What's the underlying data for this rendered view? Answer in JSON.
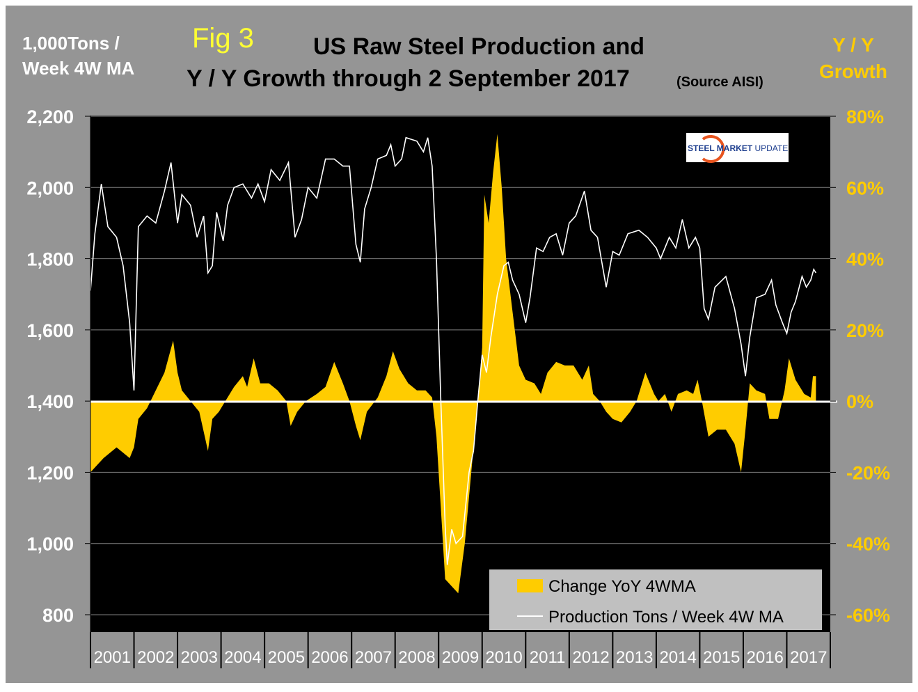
{
  "header": {
    "fig_label": "Fig 3",
    "title_line1": "US Raw Steel Production and",
    "title_line2": "Y / Y Growth through 2 September 2017",
    "source": "(Source AISI)",
    "left_axis_title_line1": "1,000Tons /",
    "left_axis_title_line2": "Week 4W MA",
    "right_axis_title_line1": "Y / Y",
    "right_axis_title_line2": "Growth"
  },
  "logo": {
    "text_bold": "STEEL MARKET",
    "text_light": "UPDATE"
  },
  "colors": {
    "background": "#959595",
    "plot": "#000000",
    "area": "#FFCC00",
    "line": "#FFFFFF",
    "right_axis": "#FFCC00",
    "grid": "#7f7f7f",
    "legend_bg": "#c0c0c0"
  },
  "chart_data": {
    "type": "line+area",
    "title": "US Raw Steel Production and Y / Y Growth through 2 September 2017",
    "ylabel_left": "1,000Tons / Week 4W MA",
    "ylabel_right": "Y / Y Growth",
    "ylim_left": [
      800,
      2200
    ],
    "ylim_right": [
      -60,
      80
    ],
    "left_ticks": [
      "2,200",
      "2,000",
      "1,800",
      "1,600",
      "1,400",
      "1,200",
      "1,000",
      "800"
    ],
    "left_tick_values": [
      2200,
      2000,
      1800,
      1600,
      1400,
      1200,
      1000,
      800
    ],
    "right_ticks": [
      "80%",
      "60%",
      "40%",
      "20%",
      "0%",
      "-20%",
      "-40%",
      "-60%"
    ],
    "right_tick_values": [
      80,
      60,
      40,
      20,
      0,
      -20,
      -40,
      -60
    ],
    "x_categories": [
      "2001",
      "2002",
      "2003",
      "2004",
      "2005",
      "2006",
      "2007",
      "2008",
      "2009",
      "2010",
      "2011",
      "2012",
      "2013",
      "2014",
      "2015",
      "2016",
      "2017"
    ],
    "xlim": [
      2001,
      2018
    ],
    "grid": true,
    "legend": {
      "placement": "bottom-right",
      "entries": [
        "Change YoY 4WMA",
        "Production Tons / Week 4W MA"
      ]
    },
    "series": [
      {
        "name": "Production Tons / Week 4W MA",
        "type": "line",
        "axis": "left",
        "x": [
          2001.0,
          2001.1,
          2001.25,
          2001.4,
          2001.6,
          2001.75,
          2001.9,
          2002.0,
          2002.1,
          2002.3,
          2002.5,
          2002.7,
          2002.85,
          2003.0,
          2003.1,
          2003.3,
          2003.45,
          2003.6,
          2003.7,
          2003.8,
          2003.9,
          2004.05,
          2004.15,
          2004.3,
          2004.5,
          2004.7,
          2004.85,
          2005.0,
          2005.15,
          2005.35,
          2005.55,
          2005.7,
          2005.85,
          2006.0,
          2006.2,
          2006.4,
          2006.6,
          2006.8,
          2006.95,
          2007.1,
          2007.2,
          2007.3,
          2007.45,
          2007.6,
          2007.8,
          2007.9,
          2008.0,
          2008.15,
          2008.25,
          2008.5,
          2008.65,
          2008.75,
          2008.85,
          2008.95,
          2009.05,
          2009.15,
          2009.2,
          2009.3,
          2009.4,
          2009.55,
          2009.7,
          2009.8,
          2009.9,
          2010.0,
          2010.1,
          2010.2,
          2010.35,
          2010.5,
          2010.6,
          2010.7,
          2010.85,
          2011.0,
          2011.1,
          2011.25,
          2011.4,
          2011.55,
          2011.7,
          2011.85,
          2012.0,
          2012.15,
          2012.35,
          2012.5,
          2012.65,
          2012.85,
          2013.0,
          2013.15,
          2013.35,
          2013.6,
          2013.8,
          2014.0,
          2014.1,
          2014.3,
          2014.45,
          2014.6,
          2014.75,
          2014.9,
          2015.0,
          2015.1,
          2015.2,
          2015.35,
          2015.6,
          2015.8,
          2015.95,
          2016.05,
          2016.15,
          2016.3,
          2016.5,
          2016.65,
          2016.75,
          2016.9,
          2017.0,
          2017.1,
          2017.2,
          2017.35,
          2017.45,
          2017.55,
          2017.62,
          2017.67
        ],
        "values": [
          1710,
          1870,
          2010,
          1890,
          1860,
          1780,
          1620,
          1430,
          1890,
          1920,
          1900,
          1990,
          2070,
          1900,
          1980,
          1950,
          1860,
          1920,
          1760,
          1780,
          1930,
          1850,
          1950,
          2000,
          2010,
          1970,
          2010,
          1960,
          2050,
          2020,
          2070,
          1860,
          1910,
          2000,
          1970,
          2080,
          2080,
          2060,
          2060,
          1840,
          1790,
          1940,
          2000,
          2080,
          2090,
          2120,
          2060,
          2080,
          2140,
          2130,
          2100,
          2140,
          2060,
          1800,
          1400,
          1050,
          940,
          1040,
          1000,
          1020,
          1200,
          1260,
          1400,
          1530,
          1480,
          1580,
          1700,
          1780,
          1790,
          1740,
          1700,
          1620,
          1690,
          1830,
          1820,
          1860,
          1870,
          1810,
          1900,
          1920,
          1990,
          1880,
          1860,
          1720,
          1820,
          1810,
          1870,
          1880,
          1860,
          1830,
          1800,
          1860,
          1830,
          1910,
          1830,
          1860,
          1830,
          1660,
          1630,
          1720,
          1750,
          1660,
          1560,
          1470,
          1580,
          1690,
          1700,
          1740,
          1670,
          1620,
          1590,
          1650,
          1680,
          1750,
          1720,
          1740,
          1770,
          1760
        ]
      },
      {
        "name": "Change YoY 4WMA",
        "type": "area",
        "axis": "right",
        "x": [
          2001.0,
          2001.3,
          2001.6,
          2001.9,
          2002.0,
          2002.1,
          2002.3,
          2002.5,
          2002.7,
          2002.9,
          2003.0,
          2003.1,
          2003.3,
          2003.5,
          2003.7,
          2003.8,
          2003.95,
          2004.1,
          2004.3,
          2004.5,
          2004.6,
          2004.75,
          2004.9,
          2005.1,
          2005.3,
          2005.5,
          2005.6,
          2005.75,
          2005.95,
          2006.2,
          2006.4,
          2006.6,
          2006.8,
          2006.95,
          2007.1,
          2007.2,
          2007.35,
          2007.6,
          2007.8,
          2007.95,
          2008.1,
          2008.3,
          2008.5,
          2008.7,
          2008.85,
          2008.95,
          2009.05,
          2009.15,
          2009.3,
          2009.45,
          2009.6,
          2009.75,
          2009.9,
          2010.0,
          2010.05,
          2010.15,
          2010.25,
          2010.35,
          2010.45,
          2010.55,
          2010.7,
          2010.85,
          2011.0,
          2011.2,
          2011.35,
          2011.5,
          2011.7,
          2011.9,
          2012.1,
          2012.3,
          2012.45,
          2012.55,
          2012.7,
          2012.85,
          2013.0,
          2013.2,
          2013.4,
          2013.55,
          2013.75,
          2013.95,
          2014.05,
          2014.2,
          2014.35,
          2014.5,
          2014.7,
          2014.85,
          2014.95,
          2015.05,
          2015.2,
          2015.4,
          2015.6,
          2015.8,
          2015.95,
          2016.05,
          2016.15,
          2016.3,
          2016.5,
          2016.6,
          2016.8,
          2016.95,
          2017.05,
          2017.2,
          2017.4,
          2017.55,
          2017.6,
          2017.67
        ],
        "values": [
          -20,
          -16,
          -13,
          -16,
          -13,
          -5,
          -2,
          3,
          8,
          17,
          8,
          3,
          0,
          -3,
          -14,
          -5,
          -3,
          0,
          4,
          7,
          4,
          12,
          5,
          5,
          3,
          0,
          -7,
          -3,
          0,
          2,
          4,
          11,
          5,
          0,
          -7,
          -11,
          -3,
          1,
          7,
          14,
          9,
          5,
          3,
          3,
          1,
          -10,
          -30,
          -50,
          -52,
          -54,
          -40,
          -20,
          0,
          15,
          58,
          50,
          64,
          75,
          60,
          40,
          25,
          10,
          6,
          5,
          2,
          8,
          11,
          10,
          10,
          6,
          10,
          2,
          0,
          -3,
          -5,
          -6,
          -3,
          0,
          8,
          2,
          0,
          2,
          -3,
          2,
          3,
          2,
          6,
          0,
          -10,
          -8,
          -8,
          -12,
          -20,
          -8,
          5,
          3,
          2,
          -5,
          -5,
          3,
          12,
          6,
          2,
          1,
          7,
          7
        ]
      }
    ]
  }
}
